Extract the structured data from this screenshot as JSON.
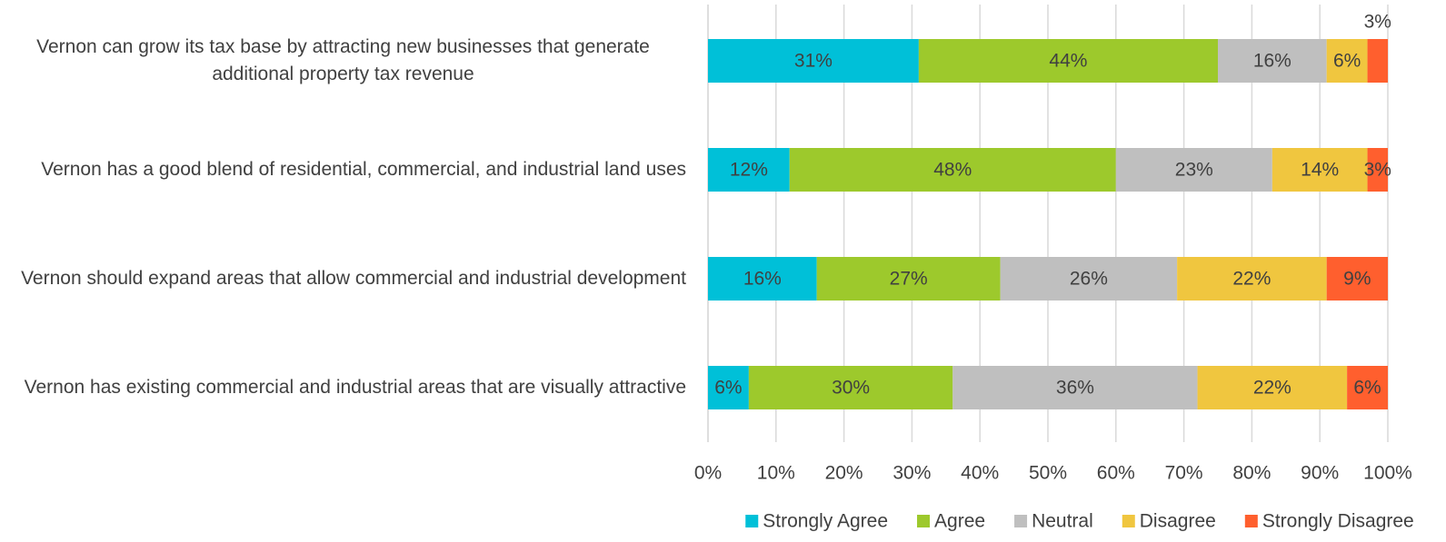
{
  "chart_data": {
    "type": "stacked-bar-horizontal",
    "categories": [
      "Vernon can grow its tax base by attracting new businesses that generate additional property tax revenue",
      "Vernon has a good blend of residential, commercial, and industrial land uses",
      "Vernon should expand areas that allow commercial and industrial development",
      "Vernon has existing commercial and industrial areas that are visually attractive"
    ],
    "series": [
      {
        "name": "Strongly Agree",
        "color": "#00c0d8",
        "values": [
          31,
          12,
          16,
          6
        ],
        "value_labels": [
          "31%",
          "12%",
          "16%",
          "6%"
        ]
      },
      {
        "name": "Agree",
        "color": "#9dc92c",
        "values": [
          44,
          48,
          27,
          30
        ],
        "value_labels": [
          "44%",
          "48%",
          "27%",
          "30%"
        ]
      },
      {
        "name": "Neutral",
        "color": "#bfbfbf",
        "values": [
          16,
          23,
          26,
          36
        ],
        "value_labels": [
          "16%",
          "23%",
          "26%",
          "36%"
        ]
      },
      {
        "name": "Disagree",
        "color": "#f0c63f",
        "values": [
          6,
          14,
          22,
          22
        ],
        "value_labels": [
          "6%",
          "14%",
          "22%",
          "22%"
        ]
      },
      {
        "name": "Strongly Disagree",
        "color": "#ff5f2e",
        "values": [
          3,
          3,
          9,
          6
        ],
        "value_labels": [
          "3%",
          "3%",
          "9%",
          "6%"
        ]
      }
    ],
    "xlim": [
      0,
      100
    ],
    "xticks": [
      {
        "value": 0,
        "label": "0%"
      },
      {
        "value": 10,
        "label": "10%"
      },
      {
        "value": 20,
        "label": "20%"
      },
      {
        "value": 30,
        "label": "30%"
      },
      {
        "value": 40,
        "label": "40%"
      },
      {
        "value": 50,
        "label": "50%"
      },
      {
        "value": 60,
        "label": "60%"
      },
      {
        "value": 70,
        "label": "70%"
      },
      {
        "value": 80,
        "label": "80%"
      },
      {
        "value": 90,
        "label": "90%"
      },
      {
        "value": 100,
        "label": "100%"
      }
    ],
    "grid": true,
    "legend": "bottom"
  }
}
